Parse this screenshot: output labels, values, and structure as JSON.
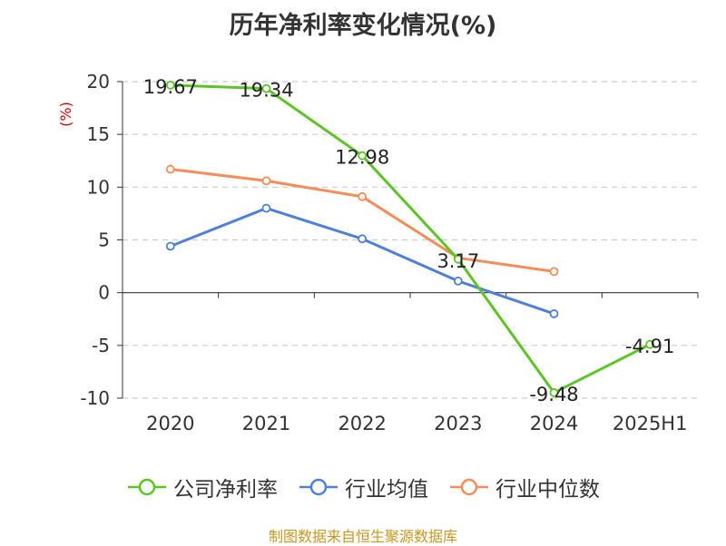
{
  "title": "历年净利率变化情况(%)",
  "source_note": "制图数据来自恒生聚源数据库",
  "colors": {
    "company": "#5dc426",
    "industry_avg": "#4f80d9",
    "industry_median": "#f58d5a",
    "axis": "#333333",
    "grid": "#cccccc",
    "ylabel": "#cc0000"
  },
  "chart_data": {
    "type": "line",
    "title": "历年净利率变化情况(%)",
    "xlabel": "",
    "ylabel": "(%)",
    "categories": [
      "2020",
      "2021",
      "2022",
      "2023",
      "2024",
      "2025H1"
    ],
    "ylim": [
      -10,
      20
    ],
    "yticks": [
      20,
      15,
      10,
      5,
      0,
      -5,
      -10
    ],
    "grid": true,
    "legend": "bottom",
    "series": [
      {
        "name": "公司净利率",
        "values": [
          19.67,
          19.34,
          12.98,
          3.17,
          -9.48,
          -4.91
        ],
        "labels": [
          "19.67",
          "19.34",
          "12.98",
          "3.17",
          "-9.48",
          "-4.91"
        ]
      },
      {
        "name": "行业均值",
        "values": [
          4.4,
          8.0,
          5.1,
          1.1,
          -2.0,
          null
        ]
      },
      {
        "name": "行业中位数",
        "values": [
          11.7,
          10.6,
          9.1,
          3.3,
          2.0,
          null
        ]
      }
    ]
  }
}
